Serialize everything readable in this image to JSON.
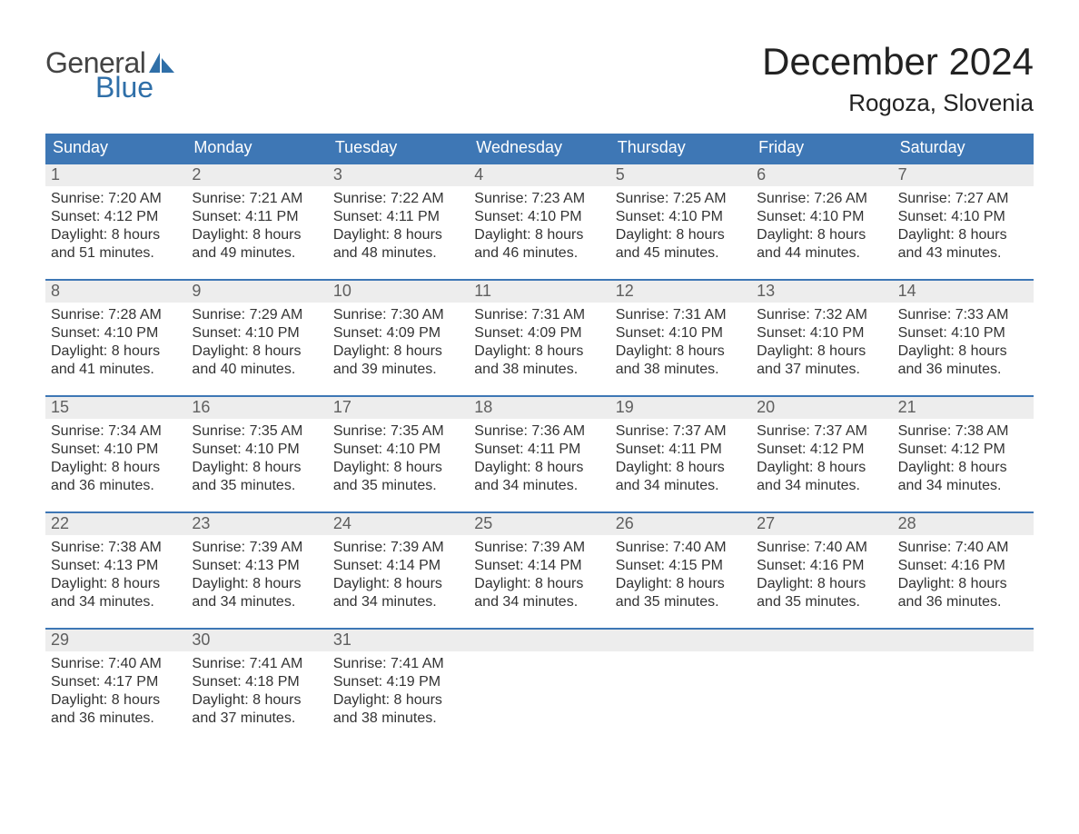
{
  "logo": {
    "word1": "General",
    "word2": "Blue"
  },
  "title": "December 2024",
  "location": "Rogoza, Slovenia",
  "colors": {
    "header_blue": "#3e77b5",
    "logo_blue": "#2f6fa8",
    "day_bg": "#ededed",
    "text": "#333333",
    "heading": "#222222"
  },
  "weekdays": [
    "Sunday",
    "Monday",
    "Tuesday",
    "Wednesday",
    "Thursday",
    "Friday",
    "Saturday"
  ],
  "weeks": [
    [
      {
        "day": "1",
        "sunrise": "Sunrise: 7:20 AM",
        "sunset": "Sunset: 4:12 PM",
        "daylight1": "Daylight: 8 hours",
        "daylight2": "and 51 minutes."
      },
      {
        "day": "2",
        "sunrise": "Sunrise: 7:21 AM",
        "sunset": "Sunset: 4:11 PM",
        "daylight1": "Daylight: 8 hours",
        "daylight2": "and 49 minutes."
      },
      {
        "day": "3",
        "sunrise": "Sunrise: 7:22 AM",
        "sunset": "Sunset: 4:11 PM",
        "daylight1": "Daylight: 8 hours",
        "daylight2": "and 48 minutes."
      },
      {
        "day": "4",
        "sunrise": "Sunrise: 7:23 AM",
        "sunset": "Sunset: 4:10 PM",
        "daylight1": "Daylight: 8 hours",
        "daylight2": "and 46 minutes."
      },
      {
        "day": "5",
        "sunrise": "Sunrise: 7:25 AM",
        "sunset": "Sunset: 4:10 PM",
        "daylight1": "Daylight: 8 hours",
        "daylight2": "and 45 minutes."
      },
      {
        "day": "6",
        "sunrise": "Sunrise: 7:26 AM",
        "sunset": "Sunset: 4:10 PM",
        "daylight1": "Daylight: 8 hours",
        "daylight2": "and 44 minutes."
      },
      {
        "day": "7",
        "sunrise": "Sunrise: 7:27 AM",
        "sunset": "Sunset: 4:10 PM",
        "daylight1": "Daylight: 8 hours",
        "daylight2": "and 43 minutes."
      }
    ],
    [
      {
        "day": "8",
        "sunrise": "Sunrise: 7:28 AM",
        "sunset": "Sunset: 4:10 PM",
        "daylight1": "Daylight: 8 hours",
        "daylight2": "and 41 minutes."
      },
      {
        "day": "9",
        "sunrise": "Sunrise: 7:29 AM",
        "sunset": "Sunset: 4:10 PM",
        "daylight1": "Daylight: 8 hours",
        "daylight2": "and 40 minutes."
      },
      {
        "day": "10",
        "sunrise": "Sunrise: 7:30 AM",
        "sunset": "Sunset: 4:09 PM",
        "daylight1": "Daylight: 8 hours",
        "daylight2": "and 39 minutes."
      },
      {
        "day": "11",
        "sunrise": "Sunrise: 7:31 AM",
        "sunset": "Sunset: 4:09 PM",
        "daylight1": "Daylight: 8 hours",
        "daylight2": "and 38 minutes."
      },
      {
        "day": "12",
        "sunrise": "Sunrise: 7:31 AM",
        "sunset": "Sunset: 4:10 PM",
        "daylight1": "Daylight: 8 hours",
        "daylight2": "and 38 minutes."
      },
      {
        "day": "13",
        "sunrise": "Sunrise: 7:32 AM",
        "sunset": "Sunset: 4:10 PM",
        "daylight1": "Daylight: 8 hours",
        "daylight2": "and 37 minutes."
      },
      {
        "day": "14",
        "sunrise": "Sunrise: 7:33 AM",
        "sunset": "Sunset: 4:10 PM",
        "daylight1": "Daylight: 8 hours",
        "daylight2": "and 36 minutes."
      }
    ],
    [
      {
        "day": "15",
        "sunrise": "Sunrise: 7:34 AM",
        "sunset": "Sunset: 4:10 PM",
        "daylight1": "Daylight: 8 hours",
        "daylight2": "and 36 minutes."
      },
      {
        "day": "16",
        "sunrise": "Sunrise: 7:35 AM",
        "sunset": "Sunset: 4:10 PM",
        "daylight1": "Daylight: 8 hours",
        "daylight2": "and 35 minutes."
      },
      {
        "day": "17",
        "sunrise": "Sunrise: 7:35 AM",
        "sunset": "Sunset: 4:10 PM",
        "daylight1": "Daylight: 8 hours",
        "daylight2": "and 35 minutes."
      },
      {
        "day": "18",
        "sunrise": "Sunrise: 7:36 AM",
        "sunset": "Sunset: 4:11 PM",
        "daylight1": "Daylight: 8 hours",
        "daylight2": "and 34 minutes."
      },
      {
        "day": "19",
        "sunrise": "Sunrise: 7:37 AM",
        "sunset": "Sunset: 4:11 PM",
        "daylight1": "Daylight: 8 hours",
        "daylight2": "and 34 minutes."
      },
      {
        "day": "20",
        "sunrise": "Sunrise: 7:37 AM",
        "sunset": "Sunset: 4:12 PM",
        "daylight1": "Daylight: 8 hours",
        "daylight2": "and 34 minutes."
      },
      {
        "day": "21",
        "sunrise": "Sunrise: 7:38 AM",
        "sunset": "Sunset: 4:12 PM",
        "daylight1": "Daylight: 8 hours",
        "daylight2": "and 34 minutes."
      }
    ],
    [
      {
        "day": "22",
        "sunrise": "Sunrise: 7:38 AM",
        "sunset": "Sunset: 4:13 PM",
        "daylight1": "Daylight: 8 hours",
        "daylight2": "and 34 minutes."
      },
      {
        "day": "23",
        "sunrise": "Sunrise: 7:39 AM",
        "sunset": "Sunset: 4:13 PM",
        "daylight1": "Daylight: 8 hours",
        "daylight2": "and 34 minutes."
      },
      {
        "day": "24",
        "sunrise": "Sunrise: 7:39 AM",
        "sunset": "Sunset: 4:14 PM",
        "daylight1": "Daylight: 8 hours",
        "daylight2": "and 34 minutes."
      },
      {
        "day": "25",
        "sunrise": "Sunrise: 7:39 AM",
        "sunset": "Sunset: 4:14 PM",
        "daylight1": "Daylight: 8 hours",
        "daylight2": "and 34 minutes."
      },
      {
        "day": "26",
        "sunrise": "Sunrise: 7:40 AM",
        "sunset": "Sunset: 4:15 PM",
        "daylight1": "Daylight: 8 hours",
        "daylight2": "and 35 minutes."
      },
      {
        "day": "27",
        "sunrise": "Sunrise: 7:40 AM",
        "sunset": "Sunset: 4:16 PM",
        "daylight1": "Daylight: 8 hours",
        "daylight2": "and 35 minutes."
      },
      {
        "day": "28",
        "sunrise": "Sunrise: 7:40 AM",
        "sunset": "Sunset: 4:16 PM",
        "daylight1": "Daylight: 8 hours",
        "daylight2": "and 36 minutes."
      }
    ],
    [
      {
        "day": "29",
        "sunrise": "Sunrise: 7:40 AM",
        "sunset": "Sunset: 4:17 PM",
        "daylight1": "Daylight: 8 hours",
        "daylight2": "and 36 minutes."
      },
      {
        "day": "30",
        "sunrise": "Sunrise: 7:41 AM",
        "sunset": "Sunset: 4:18 PM",
        "daylight1": "Daylight: 8 hours",
        "daylight2": "and 37 minutes."
      },
      {
        "day": "31",
        "sunrise": "Sunrise: 7:41 AM",
        "sunset": "Sunset: 4:19 PM",
        "daylight1": "Daylight: 8 hours",
        "daylight2": "and 38 minutes."
      },
      null,
      null,
      null,
      null
    ]
  ]
}
